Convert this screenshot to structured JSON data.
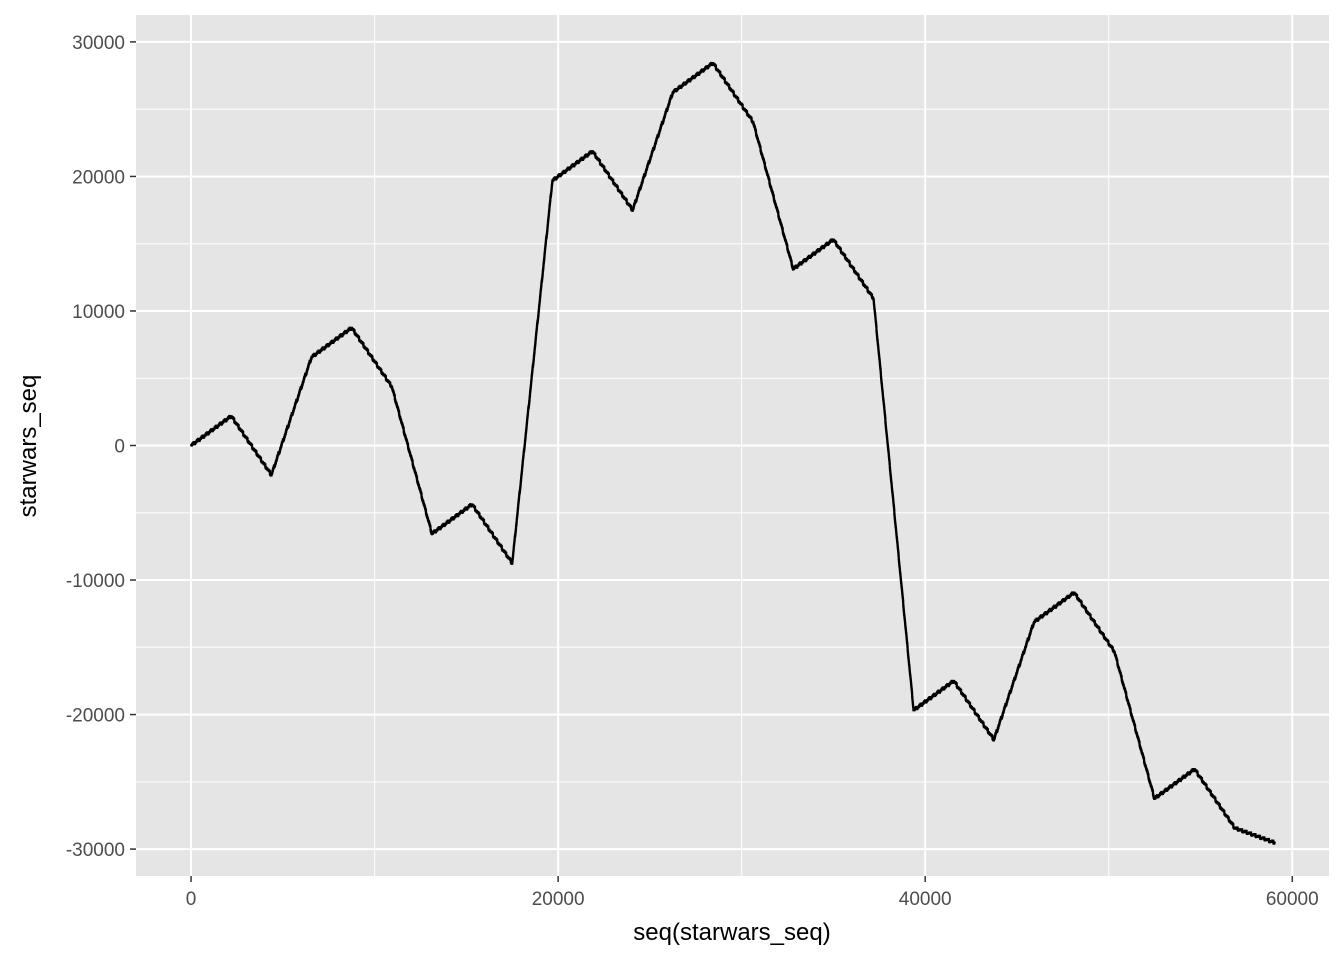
{
  "chart_data": {
    "type": "line",
    "xlabel": "seq(starwars_seq)",
    "ylabel": "starwars_seq",
    "xlim": [
      -3000,
      62000
    ],
    "ylim": [
      -32000,
      32000
    ],
    "x_ticks": [
      0,
      20000,
      40000,
      60000
    ],
    "y_ticks": [
      30000,
      20000,
      10000,
      0,
      -10000,
      -20000,
      -30000
    ],
    "x_tick_labels": [
      "0",
      "20000",
      "40000",
      "60000"
    ],
    "y_tick_labels": [
      "30000",
      "20000",
      "10000",
      "0",
      "-10000",
      "-20000",
      "-30000"
    ],
    "grid": true,
    "legend": "none",
    "colors": {
      "panel": "#e5e5e5",
      "grid": "#ffffff",
      "line": "#000000",
      "tick": "#333333"
    },
    "series": [
      {
        "values": [
          {
            "x": 0,
            "y": 0
          },
          {
            "x": 2187,
            "y": 2187
          },
          {
            "x": 4374,
            "y": -2187
          },
          {
            "x": 6561,
            "y": 6561
          },
          {
            "x": 8748,
            "y": 8748
          },
          {
            "x": 10935,
            "y": 4374
          },
          {
            "x": 13122,
            "y": -6561
          },
          {
            "x": 15309,
            "y": -4374
          },
          {
            "x": 17496,
            "y": -8748
          },
          {
            "x": 19683,
            "y": 19683
          },
          {
            "x": 21870,
            "y": 21870
          },
          {
            "x": 24057,
            "y": 17496
          },
          {
            "x": 26244,
            "y": 26244
          },
          {
            "x": 28431,
            "y": 28431
          },
          {
            "x": 30618,
            "y": 24057
          },
          {
            "x": 32805,
            "y": 13122
          },
          {
            "x": 34992,
            "y": 15309
          },
          {
            "x": 37179,
            "y": 10935
          },
          {
            "x": 39366,
            "y": -19683
          },
          {
            "x": 41553,
            "y": -17496
          },
          {
            "x": 43740,
            "y": -21870
          },
          {
            "x": 45927,
            "y": -13122
          },
          {
            "x": 48114,
            "y": -10935
          },
          {
            "x": 50301,
            "y": -15309
          },
          {
            "x": 52488,
            "y": -26244
          },
          {
            "x": 54675,
            "y": -24057
          },
          {
            "x": 56862,
            "y": -28431
          },
          {
            "x": 59049,
            "y": -29524
          }
        ]
      }
    ]
  }
}
